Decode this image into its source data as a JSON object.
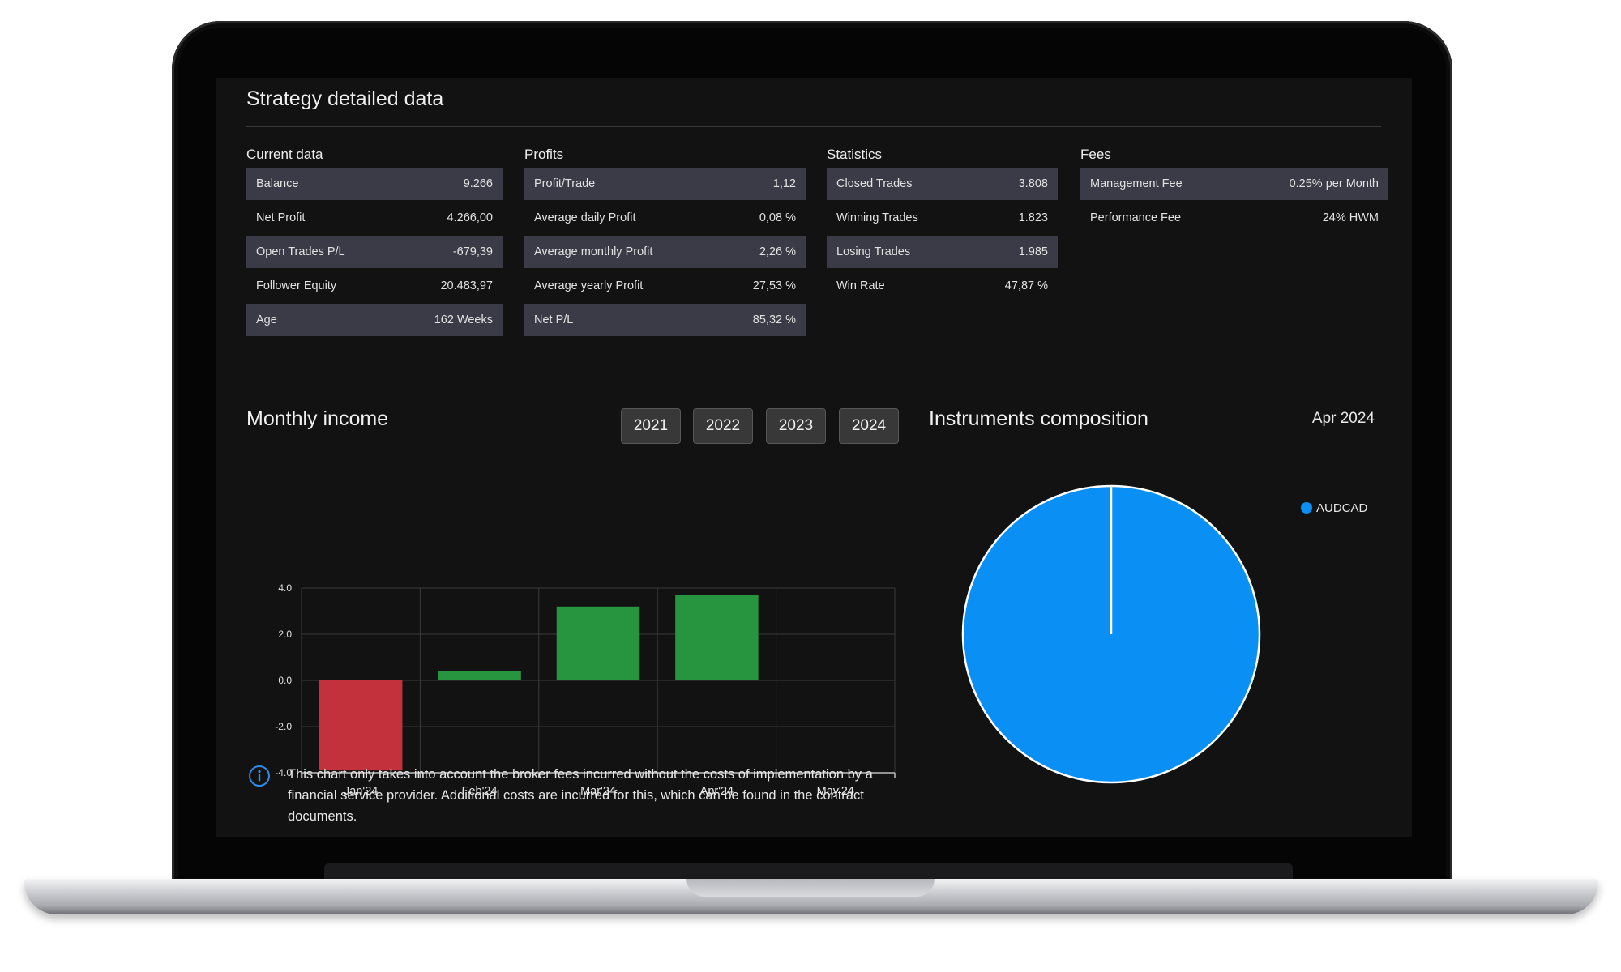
{
  "page_title": "Strategy detailed data",
  "sections": {
    "current_data": {
      "title": "Current data",
      "rows": [
        {
          "label": "Balance",
          "value": "9.266"
        },
        {
          "label": "Net Profit",
          "value": "4.266,00"
        },
        {
          "label": "Open Trades P/L",
          "value": "-679,39"
        },
        {
          "label": "Follower Equity",
          "value": "20.483,97"
        },
        {
          "label": "Age",
          "value": "162 Weeks"
        }
      ]
    },
    "profits": {
      "title": "Profits",
      "rows": [
        {
          "label": "Profit/Trade",
          "value": "1,12"
        },
        {
          "label": "Average daily Profit",
          "value": "0,08 %"
        },
        {
          "label": "Average monthly Profit",
          "value": "2,26 %"
        },
        {
          "label": "Average yearly Profit",
          "value": "27,53 %"
        },
        {
          "label": "Net P/L",
          "value": "85,32 %"
        }
      ]
    },
    "statistics": {
      "title": "Statistics",
      "rows": [
        {
          "label": "Closed Trades",
          "value": "3.808"
        },
        {
          "label": "Winning Trades",
          "value": "1.823"
        },
        {
          "label": "Losing Trades",
          "value": "1.985"
        },
        {
          "label": "Win Rate",
          "value": "47,87 %"
        }
      ]
    },
    "fees": {
      "title": "Fees",
      "rows": [
        {
          "label": "Management Fee",
          "value": "0.25% per Month"
        },
        {
          "label": "Performance Fee",
          "value": "24% HWM"
        }
      ]
    }
  },
  "monthly_income": {
    "title": "Monthly income",
    "years": [
      "2021",
      "2022",
      "2023",
      "2024"
    ]
  },
  "instruments": {
    "title": "Instruments composition",
    "date": "Apr 2024"
  },
  "info_text": "This chart only takes into account the broker fees incurred without the costs of implementation by a financial service provider. Additional costs are incurred for this, which can be found in the contract documents.",
  "colors": {
    "positive": "#27943f",
    "negative": "#c2313c",
    "pie": "#0a8ff5",
    "info": "#2f8bea"
  },
  "chart_data": [
    {
      "type": "bar",
      "title": "Monthly income",
      "categories": [
        "Jan'24",
        "Feb'24",
        "Mar'24",
        "Apr'24",
        "May'24"
      ],
      "values": [
        -3.9,
        0.4,
        3.2,
        3.7,
        null
      ],
      "ylim": [
        -4.0,
        4.0
      ],
      "yticks": [
        "4.0",
        "2.0",
        "0.0",
        "-2.0",
        "-4.0"
      ],
      "ytick_values": [
        4.0,
        2.0,
        0.0,
        -2.0,
        -4.0
      ],
      "xlabel": "",
      "ylabel": "",
      "grid": true
    },
    {
      "type": "pie",
      "title": "Instruments composition",
      "labels": [
        "AUDCAD"
      ],
      "values": [
        100
      ],
      "legend": "top-right"
    }
  ]
}
